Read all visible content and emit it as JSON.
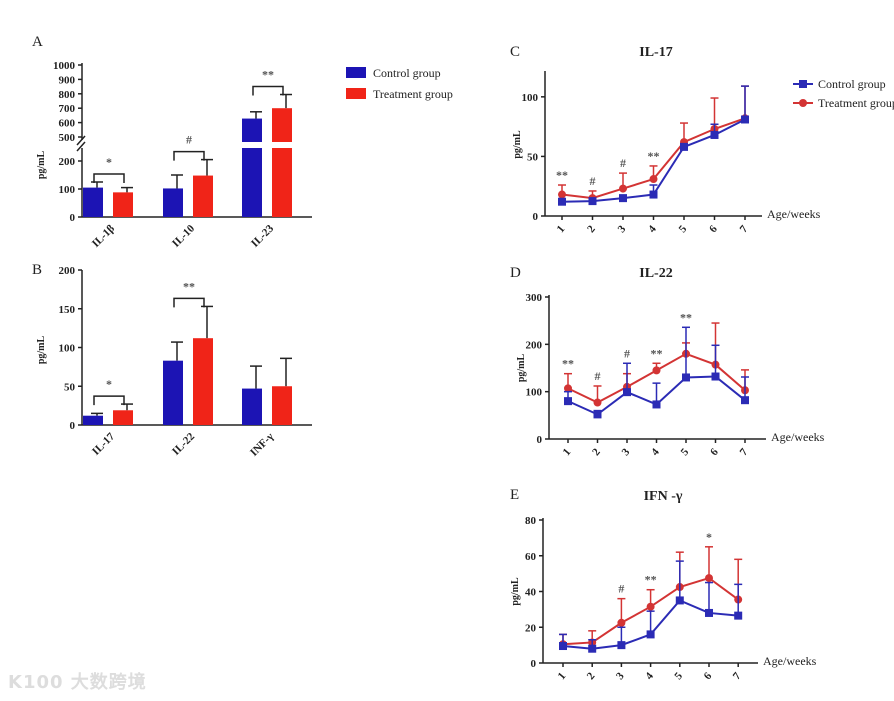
{
  "watermark": "K100 大数跨境",
  "legend": {
    "control": "Control group",
    "treatment": "Treatment group"
  },
  "colors": {
    "control": "#1c14b4",
    "treatment": "#f02418",
    "control_line": "#2b2bb5",
    "treatment_line": "#d33434"
  },
  "chart_data": [
    {
      "panel": "A",
      "type": "bar",
      "title": "",
      "ylabel": "pg/mL",
      "ylim": [
        0,
        1000
      ],
      "axis_break": [
        250,
        500
      ],
      "yticks_lower": [
        "0",
        "100",
        "200"
      ],
      "yticks_upper": [
        "500",
        "600",
        "700",
        "800",
        "900",
        "1000"
      ],
      "categories": [
        "IL-1β",
        "IL-10",
        "IL-23"
      ],
      "series": [
        {
          "name": "Control group",
          "values": [
            105,
            102,
            628
          ],
          "error_upper": [
            125,
            150,
            675
          ]
        },
        {
          "name": "Treatment group",
          "values": [
            88,
            148,
            700
          ],
          "error_upper": [
            105,
            205,
            795
          ]
        }
      ],
      "significance": [
        "*",
        "#",
        "**"
      ]
    },
    {
      "panel": "B",
      "type": "bar",
      "title": "",
      "ylabel": "pg/mL",
      "ylim": [
        0,
        200
      ],
      "yticks": [
        "0",
        "50",
        "100",
        "150",
        "200"
      ],
      "categories": [
        "IL-17",
        "IL-22",
        "INF-γ"
      ],
      "series": [
        {
          "name": "Control group",
          "values": [
            12,
            83,
            47
          ],
          "error_upper": [
            15,
            107,
            76
          ]
        },
        {
          "name": "Treatment group",
          "values": [
            19,
            112,
            50
          ],
          "error_upper": [
            27,
            153,
            86
          ]
        }
      ],
      "significance": [
        "*",
        "**",
        ""
      ]
    },
    {
      "panel": "C",
      "type": "line",
      "title": "IL-17",
      "ylabel": "pg/mL",
      "xlabel": "Age/weeks",
      "ylim": [
        0,
        120
      ],
      "yticks": [
        "0",
        "50",
        "100"
      ],
      "x": [
        "1",
        "2",
        "3",
        "4",
        "5",
        "6",
        "7"
      ],
      "series": [
        {
          "name": "Control group",
          "values": [
            12,
            12.5,
            15,
            18,
            58,
            68,
            81
          ],
          "error_upper": [
            13,
            13,
            17,
            26,
            60,
            77,
            109
          ]
        },
        {
          "name": "Treatment group",
          "values": [
            18,
            15,
            23,
            31,
            62,
            73,
            82
          ],
          "error_upper": [
            26,
            21,
            36,
            42,
            78,
            99,
            109
          ]
        }
      ],
      "significance": [
        "**",
        "#",
        "#",
        "**",
        "",
        "",
        ""
      ]
    },
    {
      "panel": "D",
      "type": "line",
      "title": "IL-22",
      "ylabel": "pg/mL",
      "xlabel": "Age/weeks",
      "ylim": [
        0,
        300
      ],
      "yticks": [
        "0",
        "100",
        "200",
        "300"
      ],
      "x": [
        "1",
        "2",
        "3",
        "4",
        "5",
        "6",
        "7"
      ],
      "series": [
        {
          "name": "Control group",
          "values": [
            80,
            52,
            99,
            73,
            130,
            132,
            82
          ],
          "error_upper": [
            100,
            60,
            160,
            118,
            236,
            198,
            131
          ]
        },
        {
          "name": "Treatment group",
          "values": [
            107,
            77,
            110,
            145,
            180,
            157,
            103
          ],
          "error_upper": [
            138,
            112,
            138,
            160,
            203,
            245,
            146
          ]
        }
      ],
      "significance": [
        "**",
        "#",
        "#",
        "**",
        "**",
        "",
        ""
      ]
    },
    {
      "panel": "E",
      "type": "line",
      "title": "IFN -γ",
      "ylabel": "pg/mL",
      "xlabel": "Age/weeks",
      "ylim": [
        0,
        80
      ],
      "yticks": [
        "0",
        "20",
        "40",
        "60",
        "80"
      ],
      "x": [
        "1",
        "2",
        "3",
        "4",
        "5",
        "6",
        "7"
      ],
      "series": [
        {
          "name": "Control group",
          "values": [
            9.5,
            8,
            10,
            16,
            35,
            28,
            26.5
          ],
          "error_upper": [
            16,
            13,
            20,
            29,
            57,
            45,
            44
          ]
        },
        {
          "name": "Treatment group",
          "values": [
            10.5,
            11.5,
            22.5,
            31.5,
            42.5,
            47.5,
            35.5
          ],
          "error_upper": [
            16,
            18,
            36,
            41,
            62,
            65,
            58
          ]
        }
      ],
      "significance": [
        "",
        "",
        "#",
        "**",
        "",
        "*",
        ""
      ]
    }
  ]
}
